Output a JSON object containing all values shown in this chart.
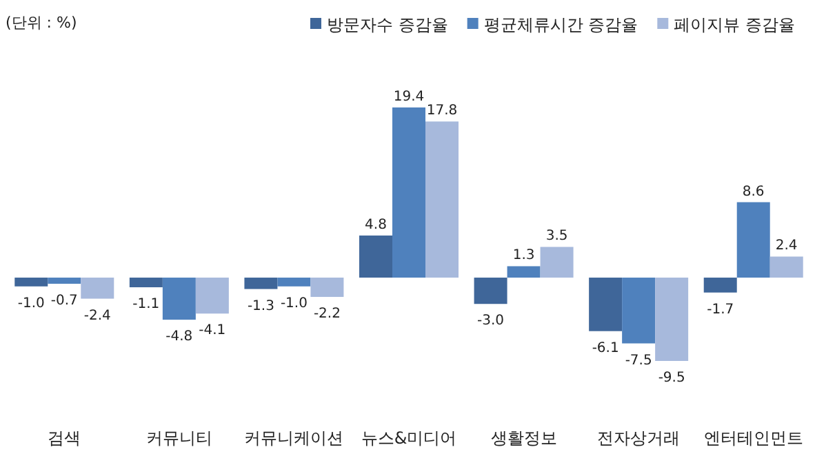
{
  "chart_data": {
    "type": "bar",
    "categories": [
      "검색",
      "커뮤니티",
      "커뮤니케이션",
      "뉴스&미디어",
      "생활정보",
      "전자상거래",
      "엔터테인먼트"
    ],
    "series": [
      {
        "name": "방문자수 증감율",
        "color": "#3f6699",
        "values": [
          -1.0,
          -1.1,
          -1.3,
          4.8,
          -3.0,
          -6.1,
          -1.7
        ],
        "value_labels": [
          "-1.0",
          "-1.1",
          "-1.3",
          "4.8",
          "-3.0",
          "-6.1",
          "-1.7"
        ]
      },
      {
        "name": "평균체류시간 증감율",
        "color": "#4f81bd",
        "values": [
          -0.7,
          -4.8,
          -1.0,
          19.4,
          1.3,
          -7.5,
          8.6
        ],
        "value_labels": [
          "-0.7",
          "-4.8",
          "-1.0",
          "19.4",
          "1.3",
          "-7.5",
          "8.6"
        ]
      },
      {
        "name": "페이지뷰 증감율",
        "color": "#a7b9dc",
        "values": [
          -2.4,
          -4.1,
          -2.2,
          17.8,
          3.5,
          -9.5,
          2.4
        ],
        "value_labels": [
          "-2.4",
          "-4.1",
          "-2.2",
          "17.8",
          "3.5",
          "-9.5",
          "2.4"
        ]
      }
    ],
    "data_labels": true,
    "legend": "top right",
    "grid": false,
    "annotations": [
      "(단위 : %)"
    ]
  }
}
